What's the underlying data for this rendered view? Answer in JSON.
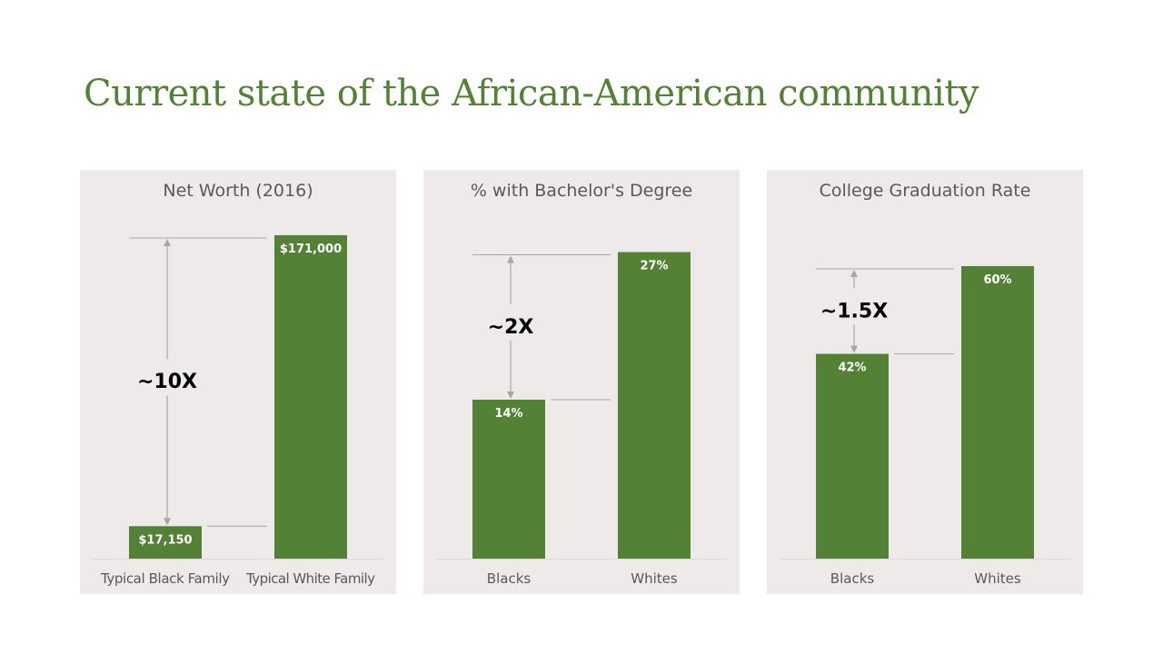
{
  "slide_title": "Current state of the African-American community",
  "colors": {
    "title": "#538135",
    "bar": "#538135",
    "panel_bg": "#EDEAE9",
    "guide": "#A6A6A6"
  },
  "chart_data": [
    {
      "type": "bar",
      "title": "Net Worth (2016)",
      "categories": [
        "Typical Black Family",
        "Typical White Family"
      ],
      "values": [
        17150,
        171000
      ],
      "data_labels": [
        "$17,150",
        "$171,000"
      ],
      "ylim": [
        0,
        182500
      ],
      "annotation": "~10X",
      "grid": false
    },
    {
      "type": "bar",
      "title": "% with Bachelor's Degree",
      "categories": [
        "Blacks",
        "Whites"
      ],
      "values": [
        14,
        27
      ],
      "data_labels": [
        "14%",
        "27%"
      ],
      "ylim": [
        0,
        30.4
      ],
      "annotation": "~2X",
      "grid": false
    },
    {
      "type": "bar",
      "title": "College Graduation Rate",
      "categories": [
        "Blacks",
        "Whites"
      ],
      "values": [
        42,
        60
      ],
      "data_labels": [
        "42%",
        "60%"
      ],
      "ylim": [
        0,
        70.8
      ],
      "annotation": "~1.5X",
      "grid": false
    }
  ]
}
